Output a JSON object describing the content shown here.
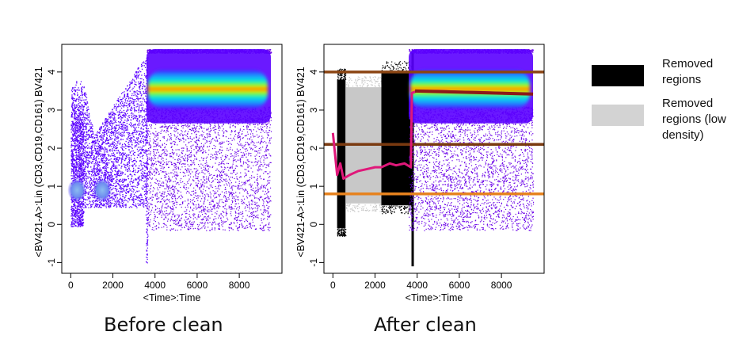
{
  "chart_data": [
    {
      "type": "scatter",
      "caption": "Before clean",
      "xlabel": "<Time>:Time",
      "ylabel": "<BV421-A>:Lin (CD3,CD19,CD161) BV421",
      "xlim": [
        -200,
        9800
      ],
      "ylim": [
        -1.2,
        4.6
      ],
      "xticks": [
        "0",
        "2000",
        "4000",
        "6000",
        "8000"
      ],
      "xtick_values": [
        0,
        2000,
        4000,
        6000,
        8000
      ],
      "yticks": [
        "-1",
        "0",
        "1",
        "2",
        "3",
        "4"
      ],
      "ytick_values": [
        -1,
        0,
        1,
        2,
        3,
        4
      ],
      "colors": {
        "low": "#5a00ff",
        "mid": "#1e90ff",
        "high": "#ff1a00",
        "sparse": "#6a00e8"
      },
      "dense_band": {
        "x": [
          3600,
          9500
        ],
        "y_center": 3.55,
        "y_halfwidth": 0.5
      },
      "clusters": [
        {
          "x": [
            0,
            600
          ],
          "y": [
            -0.1,
            3.8
          ]
        },
        {
          "x": [
            1300,
            1700
          ],
          "y": [
            0.6,
            1.3
          ]
        }
      ]
    },
    {
      "type": "scatter",
      "caption": "After clean",
      "xlabel": "<Time>:Time",
      "ylabel": "<BV421-A>:Lin (CD3,CD19,CD161) BV421",
      "xlim": [
        -200,
        9800
      ],
      "ylim": [
        -1.2,
        4.6
      ],
      "xticks": [
        "0",
        "2000",
        "4000",
        "6000",
        "8000"
      ],
      "xtick_values": [
        0,
        2000,
        4000,
        6000,
        8000
      ],
      "yticks": [
        "-1",
        "0",
        "1",
        "2",
        "3",
        "4"
      ],
      "ytick_values": [
        -1,
        0,
        1,
        2,
        3,
        4
      ],
      "horizontal_lines": [
        {
          "y": 4.0,
          "color": "#8b4513"
        },
        {
          "y": 2.1,
          "color": "#7a3a10"
        },
        {
          "y": 0.8,
          "color": "#e6821e"
        }
      ],
      "removed_regions": [
        {
          "x": [
            200,
            600
          ],
          "shade": "black"
        },
        {
          "x": [
            600,
            2300
          ],
          "shade": "gray"
        },
        {
          "x": [
            2300,
            3750
          ],
          "shade": "black"
        }
      ],
      "median_line": {
        "color": "#e0187a",
        "x": [
          0,
          200,
          350,
          500,
          800,
          1200,
          1600,
          2000,
          2300,
          2700,
          3000,
          3400,
          3700,
          3750,
          4000,
          5000,
          6000,
          7000,
          8000,
          9000,
          9500
        ],
        "y": [
          2.4,
          1.3,
          1.6,
          1.2,
          1.3,
          1.4,
          1.45,
          1.5,
          1.5,
          1.6,
          1.55,
          1.6,
          1.5,
          3.45,
          3.5,
          3.5,
          3.48,
          3.47,
          3.45,
          3.43,
          3.42
        ]
      },
      "median_line_dark": {
        "color": "#8b1a1a",
        "x": [
          3900,
          9500
        ],
        "y": [
          3.5,
          3.42
        ]
      }
    }
  ],
  "legend": {
    "items": [
      {
        "label_lines": [
          "Removed",
          "regions"
        ],
        "color": "#000000"
      },
      {
        "label_lines": [
          "Removed",
          "regions (low",
          "density)"
        ],
        "color": "#d3d3d3"
      }
    ]
  }
}
